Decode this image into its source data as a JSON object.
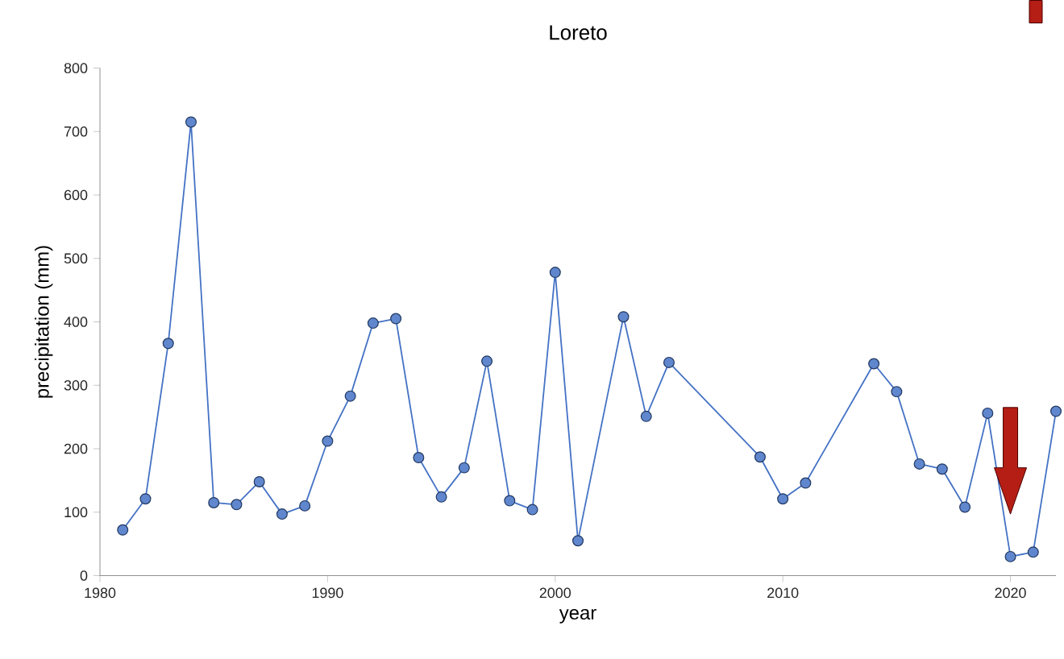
{
  "chart_data": {
    "type": "line",
    "title": "Loreto",
    "xlabel": "year",
    "ylabel": "precipitation (mm)",
    "x": [
      1981,
      1982,
      1983,
      1984,
      1985,
      1986,
      1987,
      1988,
      1989,
      1990,
      1991,
      1992,
      1993,
      1994,
      1995,
      1996,
      1997,
      1998,
      1999,
      2000,
      2001,
      2003,
      2004,
      2005,
      2009,
      2010,
      2011,
      2014,
      2015,
      2016,
      2017,
      2018,
      2019,
      2020,
      2021,
      2022
    ],
    "series": [
      {
        "color": "#4472c4",
        "values": [
          72,
          121,
          366,
          715,
          115,
          112,
          148,
          97,
          110,
          212,
          283,
          398,
          405,
          186,
          124,
          170,
          338,
          118,
          104,
          478,
          55,
          408,
          251,
          336,
          187,
          121,
          146,
          334,
          290,
          176,
          168,
          108,
          256,
          30,
          37,
          259
        ]
      }
    ],
    "xlim": [
      1980,
      2022
    ],
    "xticks": [
      1980,
      1990,
      2000,
      2010,
      2020
    ],
    "ylim": [
      0,
      800
    ],
    "yticks": [
      0,
      100,
      200,
      300,
      400,
      500,
      600,
      700,
      800
    ],
    "grid": false,
    "marker": "circle",
    "line_style": "solid"
  }
}
